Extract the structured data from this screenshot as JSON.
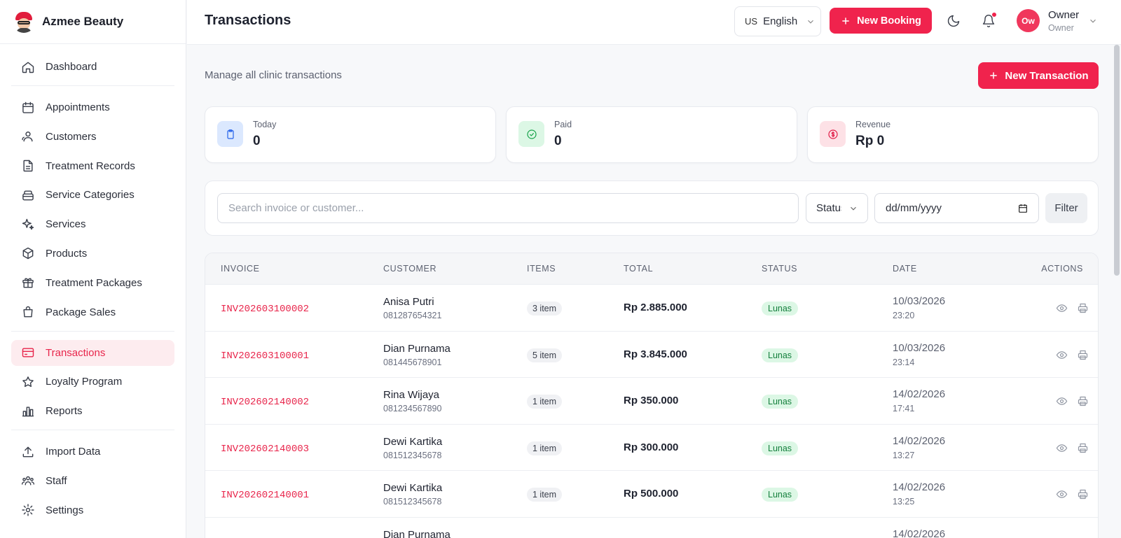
{
  "brand": {
    "name": "Azmee Beauty"
  },
  "sidebar": {
    "groups": [
      [
        {
          "label": "Dashboard",
          "icon": "home-icon"
        }
      ],
      [
        {
          "label": "Appointments",
          "icon": "calendar-icon"
        },
        {
          "label": "Customers",
          "icon": "users-icon"
        },
        {
          "label": "Treatment Records",
          "icon": "file-icon"
        },
        {
          "label": "Service Categories",
          "icon": "layers-icon"
        },
        {
          "label": "Services",
          "icon": "sparkles-icon"
        },
        {
          "label": "Products",
          "icon": "box-icon"
        },
        {
          "label": "Treatment Packages",
          "icon": "gift-icon"
        },
        {
          "label": "Package Sales",
          "icon": "shopping-bag-icon"
        }
      ],
      [
        {
          "label": "Transactions",
          "icon": "credit-card-icon",
          "active": true
        },
        {
          "label": "Loyalty Program",
          "icon": "star-icon"
        },
        {
          "label": "Reports",
          "icon": "bar-chart-icon"
        }
      ],
      [
        {
          "label": "Import Data",
          "icon": "upload-icon"
        },
        {
          "label": "Staff",
          "icon": "team-icon"
        },
        {
          "label": "Settings",
          "icon": "gear-icon"
        }
      ]
    ]
  },
  "header": {
    "title": "Transactions",
    "language": {
      "flag": "US",
      "label": "English"
    },
    "new_booking_label": "New Booking",
    "user": {
      "initials": "Ow",
      "name": "Owner",
      "role": "Owner"
    }
  },
  "main": {
    "subtitle": "Manage all clinic transactions",
    "new_transaction_label": "New Transaction",
    "stats": [
      {
        "label": "Today",
        "value": "0",
        "icon": "clipboard-icon",
        "color": "#2563eb",
        "bg": "#dbe8fe"
      },
      {
        "label": "Paid",
        "value": "0",
        "icon": "check-circle-icon",
        "color": "#16a34a",
        "bg": "#dcf7e5"
      },
      {
        "label": "Revenue",
        "value": "Rp 0",
        "icon": "dollar-circle-icon",
        "color": "#e11d48",
        "bg": "#fde1e6"
      }
    ],
    "filters": {
      "search_placeholder": "Search invoice or customer...",
      "status_label": "Status",
      "date_placeholder": "dd/mm/yyyy",
      "filter_label": "Filter"
    },
    "table": {
      "columns": [
        "INVOICE",
        "CUSTOMER",
        "ITEMS",
        "TOTAL",
        "STATUS",
        "DATE",
        "ACTIONS"
      ],
      "rows": [
        {
          "invoice": "INV202603100002",
          "customer": "Anisa Putri",
          "phone": "081287654321",
          "items": "3 item",
          "total": "Rp 2.885.000",
          "status": "Lunas",
          "date": "10/03/2026",
          "time": "23:20"
        },
        {
          "invoice": "INV202603100001",
          "customer": "Dian Purnama",
          "phone": "081445678901",
          "items": "5 item",
          "total": "Rp 3.845.000",
          "status": "Lunas",
          "date": "10/03/2026",
          "time": "23:14"
        },
        {
          "invoice": "INV202602140002",
          "customer": "Rina Wijaya",
          "phone": "081234567890",
          "items": "1 item",
          "total": "Rp 350.000",
          "status": "Lunas",
          "date": "14/02/2026",
          "time": "17:41"
        },
        {
          "invoice": "INV202602140003",
          "customer": "Dewi Kartika",
          "phone": "081512345678",
          "items": "1 item",
          "total": "Rp 300.000",
          "status": "Lunas",
          "date": "14/02/2026",
          "time": "13:27"
        },
        {
          "invoice": "INV202602140001",
          "customer": "Dewi Kartika",
          "phone": "081512345678",
          "items": "1 item",
          "total": "Rp 500.000",
          "status": "Lunas",
          "date": "14/02/2026",
          "time": "13:25"
        },
        {
          "invoice": "",
          "customer": "Dian Purnama",
          "phone": "",
          "items": "",
          "total": "",
          "status": "",
          "date": "14/02/2026",
          "time": ""
        }
      ]
    }
  },
  "colors": {
    "accent": "#f0234d",
    "success_bg": "#dcf7e5",
    "success_text": "#15803d"
  }
}
